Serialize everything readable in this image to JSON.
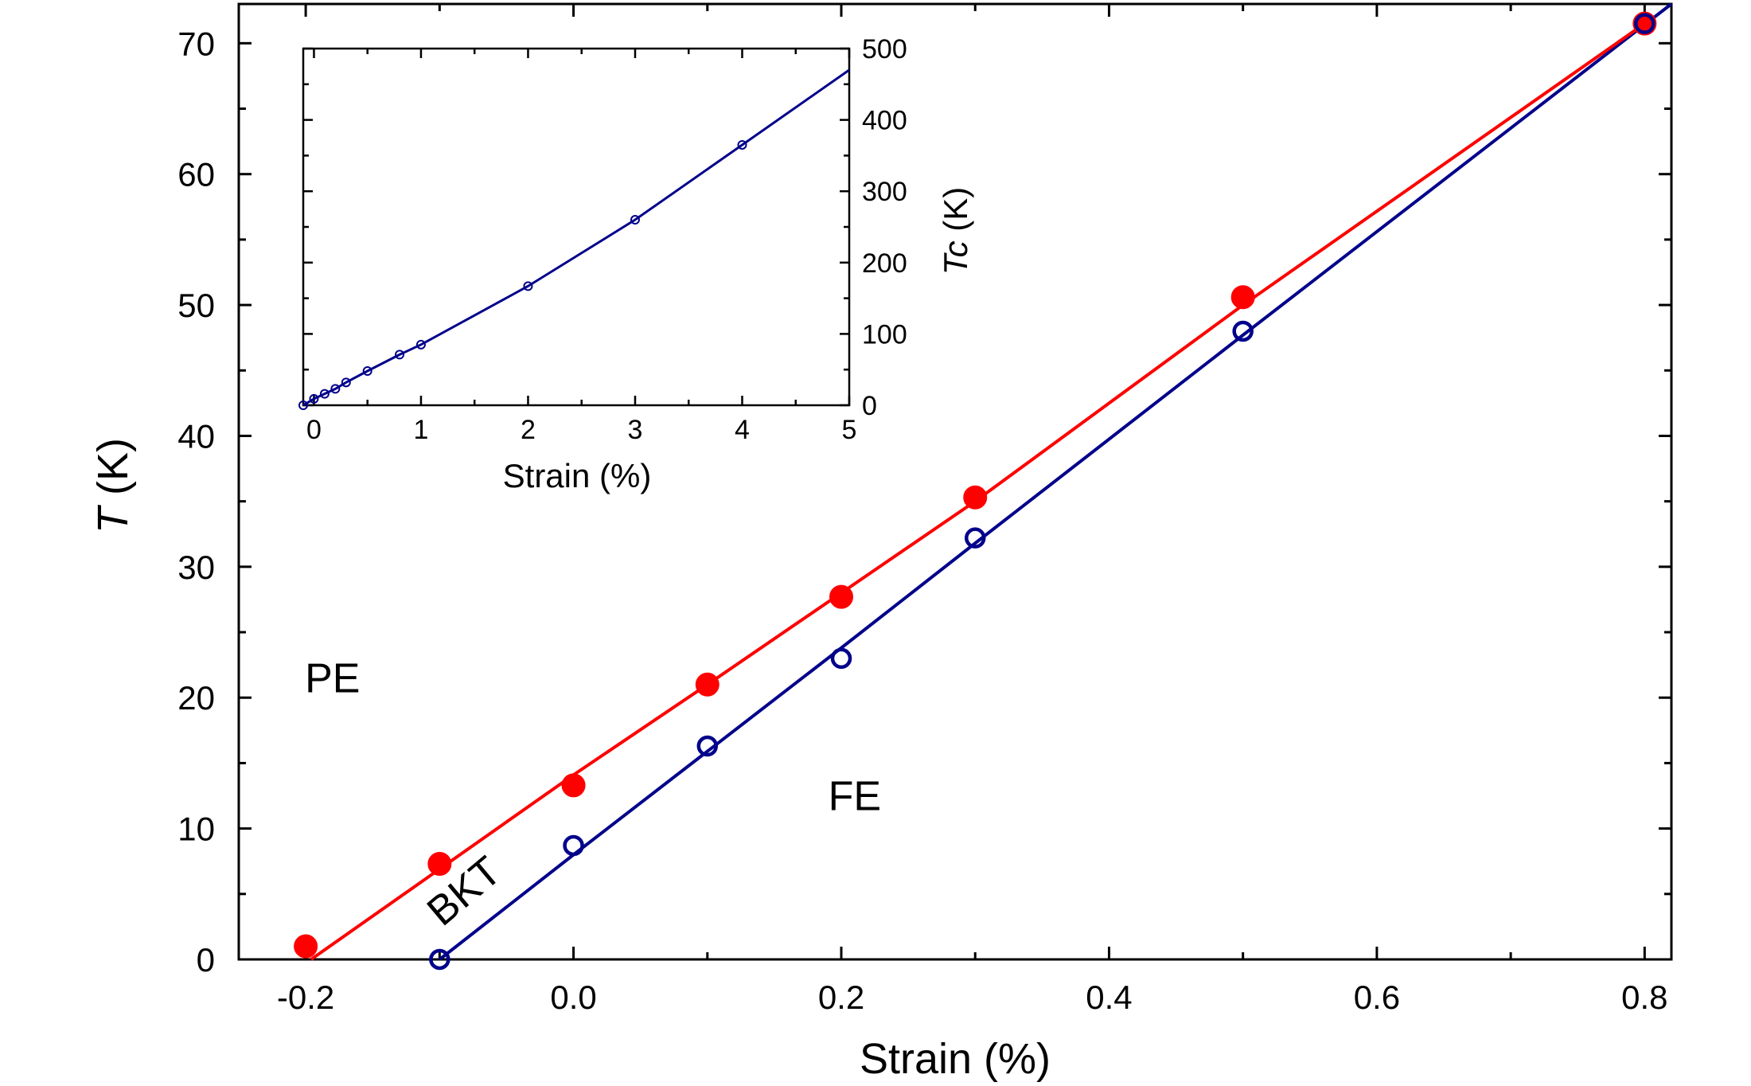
{
  "chart_data": [
    {
      "type": "line",
      "title": "",
      "xlabel": "Strain (%)",
      "ylabel": {
        "italic": "T",
        "rest": " (K)"
      },
      "xlim": [
        -0.25,
        0.82
      ],
      "ylim": [
        0,
        73
      ],
      "xticks": [
        -0.2,
        0.0,
        0.2,
        0.4,
        0.6,
        0.8
      ],
      "xtick_labels": [
        "-0.2",
        "0.0",
        "0.2",
        "0.4",
        "0.6",
        "0.8"
      ],
      "yticks": [
        0,
        10,
        20,
        30,
        40,
        50,
        60,
        70
      ],
      "ytick_labels": [
        "0",
        "10",
        "20",
        "30",
        "40",
        "50",
        "60",
        "70"
      ],
      "colors": {
        "red": "#ff0000",
        "blue": "#00008b"
      },
      "series": [
        {
          "name": "red-filled",
          "marker": "filled-circle",
          "color": "#ff0000",
          "x": [
            -0.2,
            -0.1,
            0.0,
            0.1,
            0.2,
            0.3,
            0.5,
            0.8
          ],
          "y": [
            1.0,
            7.3,
            13.3,
            21.0,
            27.7,
            35.3,
            50.6,
            71.5
          ],
          "fit_line": {
            "x": [
              -0.196,
              0.0,
              0.1,
              0.2,
              0.3,
              0.5,
              0.8
            ],
            "y": [
              0.0,
              14.1,
              21.0,
              28.0,
              35.0,
              50.0,
              71.5
            ]
          }
        },
        {
          "name": "blue-open",
          "marker": "open-circle",
          "color": "#00008b",
          "x": [
            -0.1,
            0.0,
            0.1,
            0.2,
            0.3,
            0.5,
            0.8
          ],
          "y": [
            0.0,
            8.7,
            16.3,
            23.0,
            32.2,
            48.0,
            71.5
          ],
          "fit_line": {
            "x": [
              -0.1,
              0.0,
              0.1,
              0.2,
              0.3,
              0.5,
              0.82
            ],
            "y": [
              0.0,
              8.0,
              15.9,
              23.8,
              31.8,
              47.7,
              73.0
            ]
          }
        }
      ],
      "annotations": [
        {
          "text": "PE",
          "x": -0.18,
          "y": 21.5
        },
        {
          "text": "FE",
          "x": 0.21,
          "y": 12.5
        },
        {
          "text": "BKT",
          "x": -0.075,
          "y": 5.5,
          "rotation_deg": -40
        }
      ]
    },
    {
      "type": "line",
      "title": "inset",
      "xlabel": "Strain (%)",
      "ylabel": {
        "italic": "Tc",
        "rest": " (K)"
      },
      "xlim": [
        -0.1,
        5.0
      ],
      "ylim": [
        0,
        500
      ],
      "y_axis_side": "right",
      "xticks": [
        0,
        1,
        2,
        3,
        4,
        5
      ],
      "xtick_labels": [
        "0",
        "1",
        "2",
        "3",
        "4",
        "5"
      ],
      "yticks": [
        0,
        100,
        200,
        300,
        400,
        500
      ],
      "ytick_labels": [
        "0",
        "100",
        "200",
        "300",
        "400",
        "500"
      ],
      "series": [
        {
          "name": "Tc",
          "marker": "open-circle",
          "color": "#00008b",
          "x": [
            -0.1,
            0.0,
            0.1,
            0.2,
            0.3,
            0.5,
            0.8,
            1.0,
            2.0,
            3.0,
            4.0
          ],
          "y": [
            0,
            9,
            16,
            23,
            32,
            48,
            71,
            85,
            167,
            260,
            365
          ],
          "line_end": {
            "x": 5.0,
            "y": 470
          }
        }
      ]
    }
  ]
}
